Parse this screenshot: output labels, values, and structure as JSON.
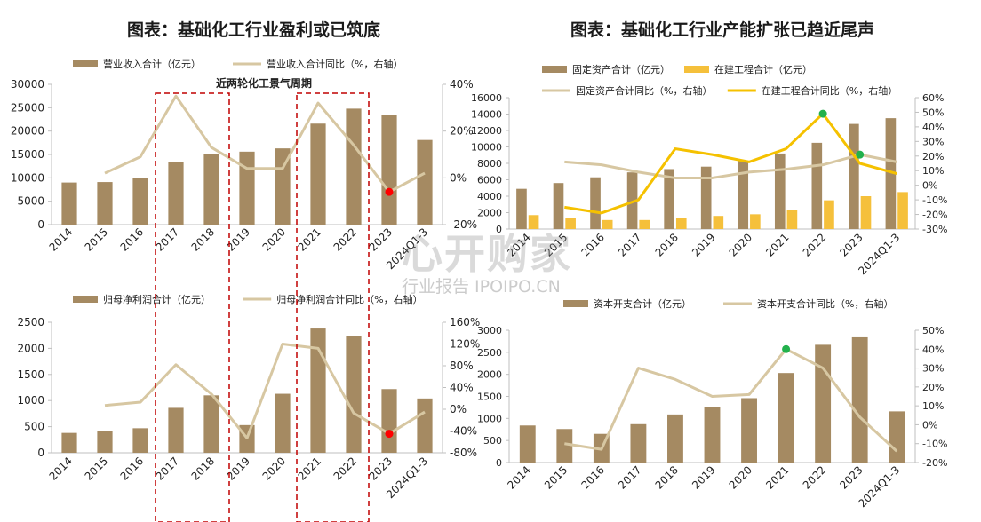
{
  "titles": {
    "left": "图表：基础化工行业盈利或已筑底",
    "right": "图表：基础化工行业产能扩张已趋近尾声"
  },
  "annotation": "近两轮化工景气周期",
  "watermark": {
    "main": "心开购家",
    "sub": "行业报告 IPOIPO.CN"
  },
  "colors": {
    "bar": "#a58a62",
    "barLight": "#f5c03b",
    "line": "#d7c7a2",
    "lineYellow": "#f5c100",
    "red": "#ff0000",
    "green": "#22b14c",
    "cycle": "#c00000"
  },
  "chart_data": [
    {
      "id": "revenue",
      "type": "bar+line",
      "categories": [
        "2014",
        "2015",
        "2016",
        "2017",
        "2018",
        "2019",
        "2020",
        "2021",
        "2022",
        "2023",
        "2024Q1-3"
      ],
      "series": [
        {
          "name": "营业收入合计（亿元）",
          "kind": "bar",
          "axis": "left",
          "values": [
            9000,
            9100,
            9900,
            13400,
            15100,
            15600,
            16300,
            21600,
            24800,
            23500,
            18100
          ]
        },
        {
          "name": "营业收入合计同比（%，右轴）",
          "kind": "line",
          "axis": "right",
          "values": [
            null,
            2,
            9,
            35,
            13,
            4,
            4,
            32,
            14,
            -6,
            2
          ]
        }
      ],
      "yLeft": {
        "min": 0,
        "max": 30000,
        "ticks": [
          "0",
          "5000",
          "10000",
          "15000",
          "20000",
          "25000",
          "30000"
        ]
      },
      "yRight": {
        "min": -20,
        "max": 40,
        "ticks": [
          "-20%",
          "0%",
          "20%",
          "40%"
        ]
      },
      "markers": [
        {
          "category": "2023",
          "color": "red"
        }
      ]
    },
    {
      "id": "netprofit",
      "type": "bar+line",
      "categories": [
        "2014",
        "2015",
        "2016",
        "2017",
        "2018",
        "2019",
        "2020",
        "2021",
        "2022",
        "2023",
        "2024Q1-3"
      ],
      "series": [
        {
          "name": "归母净利润合计（亿元）",
          "kind": "bar",
          "axis": "left",
          "values": [
            380,
            410,
            470,
            860,
            1100,
            530,
            1130,
            2380,
            2240,
            1220,
            1040
          ]
        },
        {
          "name": "归母净利润合计同比（%，右轴）",
          "kind": "line",
          "axis": "right",
          "values": [
            null,
            7,
            13,
            82,
            28,
            -53,
            120,
            112,
            -7,
            -45,
            -5
          ]
        }
      ],
      "yLeft": {
        "min": 0,
        "max": 2500,
        "ticks": [
          "0",
          "500",
          "1000",
          "1500",
          "2000",
          "2500"
        ]
      },
      "yRight": {
        "min": -80,
        "max": 160,
        "ticks": [
          "-80%",
          "-40%",
          "0%",
          "40%",
          "80%",
          "120%",
          "160%"
        ],
        "tickValues": [
          -80,
          -40,
          0,
          40,
          80,
          120,
          160
        ]
      },
      "markers": [
        {
          "category": "2023",
          "color": "red"
        }
      ]
    },
    {
      "id": "assets",
      "type": "bar+line",
      "categories": [
        "2014",
        "2015",
        "2016",
        "2017",
        "2018",
        "2019",
        "2020",
        "2021",
        "2022",
        "2023",
        "2024Q1-3"
      ],
      "series": [
        {
          "name": "固定资产合计（亿元）",
          "kind": "bar",
          "axis": "left",
          "values": [
            4900,
            5600,
            6300,
            6900,
            7300,
            7600,
            8300,
            9200,
            10500,
            12800,
            13500
          ]
        },
        {
          "name": "在建工程合计（亿元）",
          "kind": "bar2",
          "axis": "left",
          "values": [
            1700,
            1400,
            1100,
            1100,
            1300,
            1600,
            1800,
            2300,
            3500,
            4000,
            4500
          ]
        },
        {
          "name": "固定资产合计同比（%，右轴）",
          "kind": "line",
          "axis": "right",
          "values": [
            null,
            16,
            14,
            9,
            5,
            5,
            9,
            11,
            14,
            21,
            16
          ]
        },
        {
          "name": "在建工程合计同比（%，右轴）",
          "kind": "line2",
          "axis": "right",
          "values": [
            null,
            -15,
            -19,
            -10,
            25,
            21,
            16,
            25,
            49,
            15,
            8
          ]
        }
      ],
      "yLeft": {
        "min": 0,
        "max": 16000,
        "ticks": [
          "0",
          "2000",
          "4000",
          "6000",
          "8000",
          "10000",
          "12000",
          "14000",
          "16000"
        ]
      },
      "yRight": {
        "min": -30,
        "max": 60,
        "ticks": [
          "-30%",
          "-20%",
          "-10%",
          "0%",
          "10%",
          "20%",
          "30%",
          "40%",
          "50%",
          "60%"
        ]
      },
      "markers": [
        {
          "category": "2022",
          "color": "green",
          "series": 3
        },
        {
          "category": "2023",
          "color": "green",
          "series": 2
        }
      ]
    },
    {
      "id": "capex",
      "type": "bar+line",
      "categories": [
        "2014",
        "2015",
        "2016",
        "2017",
        "2018",
        "2019",
        "2020",
        "2021",
        "2022",
        "2023",
        "2024Q1-3"
      ],
      "series": [
        {
          "name": "资本开支合计（亿元）",
          "kind": "bar",
          "axis": "left",
          "values": [
            840,
            760,
            650,
            870,
            1090,
            1250,
            1460,
            2030,
            2670,
            2840,
            1160
          ]
        },
        {
          "name": "资本开支合计同比（%，右轴）",
          "kind": "line",
          "axis": "right",
          "values": [
            null,
            -10,
            -13,
            30,
            24,
            15,
            16,
            40,
            30,
            4,
            -14
          ]
        }
      ],
      "yLeft": {
        "min": 0,
        "max": 3000,
        "ticks": [
          "0",
          "500",
          "1000",
          "1500",
          "2000",
          "2500",
          "3000"
        ]
      },
      "yRight": {
        "min": -20,
        "max": 50,
        "ticks": [
          "-20%",
          "-10%",
          "0%",
          "10%",
          "20%",
          "30%",
          "40%",
          "50%"
        ]
      },
      "markers": [
        {
          "category": "2021",
          "color": "green"
        }
      ]
    }
  ]
}
